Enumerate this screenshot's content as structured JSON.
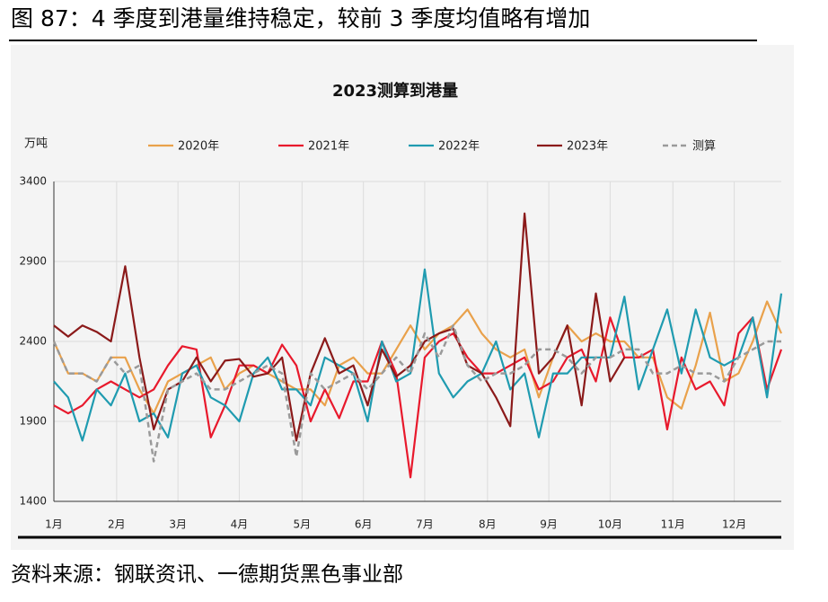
{
  "header": {
    "title": "图 87：4 季度到港量维持稳定，较前 3 季度均值略有增加"
  },
  "chart_data": {
    "type": "line",
    "title": "2023测算到港量",
    "y_label": "万吨",
    "x": [
      1,
      2,
      3,
      4,
      5,
      6,
      7,
      8,
      9,
      10,
      11,
      12,
      13,
      14,
      15,
      16,
      17,
      18,
      19,
      20,
      21,
      22,
      23,
      24,
      25,
      26,
      27,
      28,
      29,
      30,
      31,
      32,
      33,
      34,
      35,
      36,
      37,
      38,
      39,
      40,
      41,
      42,
      43,
      44,
      45,
      46,
      47,
      48,
      49,
      50,
      51,
      52
    ],
    "xlim": [
      1,
      52
    ],
    "xticks": [
      {
        "value": 1,
        "label": "1月"
      },
      {
        "value": 5.4,
        "label": "2月"
      },
      {
        "value": 9.7,
        "label": "3月"
      },
      {
        "value": 14,
        "label": "4月"
      },
      {
        "value": 18.4,
        "label": "5月"
      },
      {
        "value": 22.7,
        "label": "6月"
      },
      {
        "value": 27,
        "label": "7月"
      },
      {
        "value": 31.4,
        "label": "8月"
      },
      {
        "value": 35.7,
        "label": "9月"
      },
      {
        "value": 40,
        "label": "10月"
      },
      {
        "value": 44.4,
        "label": "11月"
      },
      {
        "value": 48.7,
        "label": "12月"
      }
    ],
    "ylim": [
      1400,
      3400
    ],
    "yticks": [
      1400,
      1900,
      2400,
      2900,
      3400
    ],
    "grid": true,
    "legend": "top",
    "series": [
      {
        "name": "2020年",
        "color": "#e9a14b",
        "values": [
          2400,
          2200,
          2200,
          2150,
          2300,
          2300,
          2100,
          1950,
          2150,
          2200,
          2250,
          2300,
          2100,
          2200,
          2250,
          2200,
          2150,
          2100,
          2100,
          2000,
          2250,
          2300,
          2200,
          2200,
          2350,
          2500,
          2350,
          2450,
          2500,
          2600,
          2450,
          2350,
          2300,
          2350,
          2050,
          2300,
          2500,
          2400,
          2450,
          2400,
          2400,
          2300,
          2300,
          2050,
          1980,
          2250,
          2580,
          2150,
          2200,
          2400,
          2650,
          2450
        ]
      },
      {
        "name": "2021年",
        "color": "#e8192c",
        "values": [
          2000,
          1950,
          2000,
          2100,
          2150,
          2100,
          2050,
          2100,
          2250,
          2370,
          2350,
          1800,
          2000,
          2250,
          2250,
          2200,
          2380,
          2250,
          1900,
          2100,
          1920,
          2150,
          2150,
          2400,
          2200,
          1550,
          2300,
          2400,
          2450,
          2300,
          2200,
          2200,
          2250,
          2300,
          2100,
          2150,
          2300,
          2350,
          2150,
          2550,
          2300,
          2300,
          2350,
          1850,
          2300,
          2100,
          2150,
          2000,
          2450,
          2550,
          2100,
          2350
        ]
      },
      {
        "name": "2022年",
        "color": "#1f9bb0",
        "values": [
          2150,
          2050,
          1780,
          2100,
          2000,
          2200,
          1900,
          1950,
          1800,
          2200,
          2250,
          2050,
          2000,
          1900,
          2200,
          2300,
          2100,
          2100,
          2000,
          2300,
          2250,
          2200,
          1900,
          2400,
          2150,
          2200,
          2850,
          2200,
          2050,
          2150,
          2200,
          2400,
          2100,
          2200,
          1800,
          2200,
          2200,
          2300,
          2300,
          2300,
          2680,
          2100,
          2350,
          2600,
          2200,
          2600,
          2300,
          2250,
          2300,
          2550,
          2050,
          2700
        ]
      },
      {
        "name": "2023年",
        "color": "#8b1a1a",
        "values": [
          2500,
          2430,
          2500,
          2460,
          2400,
          2870,
          2300,
          1850,
          2100,
          2150,
          2300,
          2150,
          2280,
          2290,
          2180,
          2200,
          2300,
          1780,
          2200,
          2420,
          2200,
          2250,
          2000,
          2350,
          2180,
          2250,
          2400,
          2450,
          2480,
          2250,
          2200,
          2050,
          1870,
          3200,
          2200,
          2300,
          2500,
          2000,
          2700,
          2150,
          2300,
          null,
          null,
          null,
          null,
          null,
          null,
          null,
          null,
          null,
          null,
          null
        ]
      },
      {
        "name": "测算",
        "color": "#9a9a9a",
        "dashed": true,
        "values": [
          2400,
          2200,
          2200,
          2150,
          2300,
          2200,
          2250,
          1650,
          2100,
          2150,
          2200,
          2100,
          2100,
          2150,
          2200,
          2250,
          2200,
          1680,
          2200,
          2100,
          2150,
          2200,
          2100,
          2200,
          2300,
          2200,
          2450,
          2300,
          2500,
          2250,
          2150,
          2200,
          2200,
          2250,
          2350,
          2350,
          2300,
          2200,
          2300,
          2300,
          2350,
          2350,
          2200,
          2200,
          2250,
          2200,
          2200,
          2150,
          2300,
          2350,
          2400,
          2400
        ]
      }
    ]
  },
  "footer": {
    "source": "资料来源：钢联资讯、一德期货黑色事业部"
  }
}
